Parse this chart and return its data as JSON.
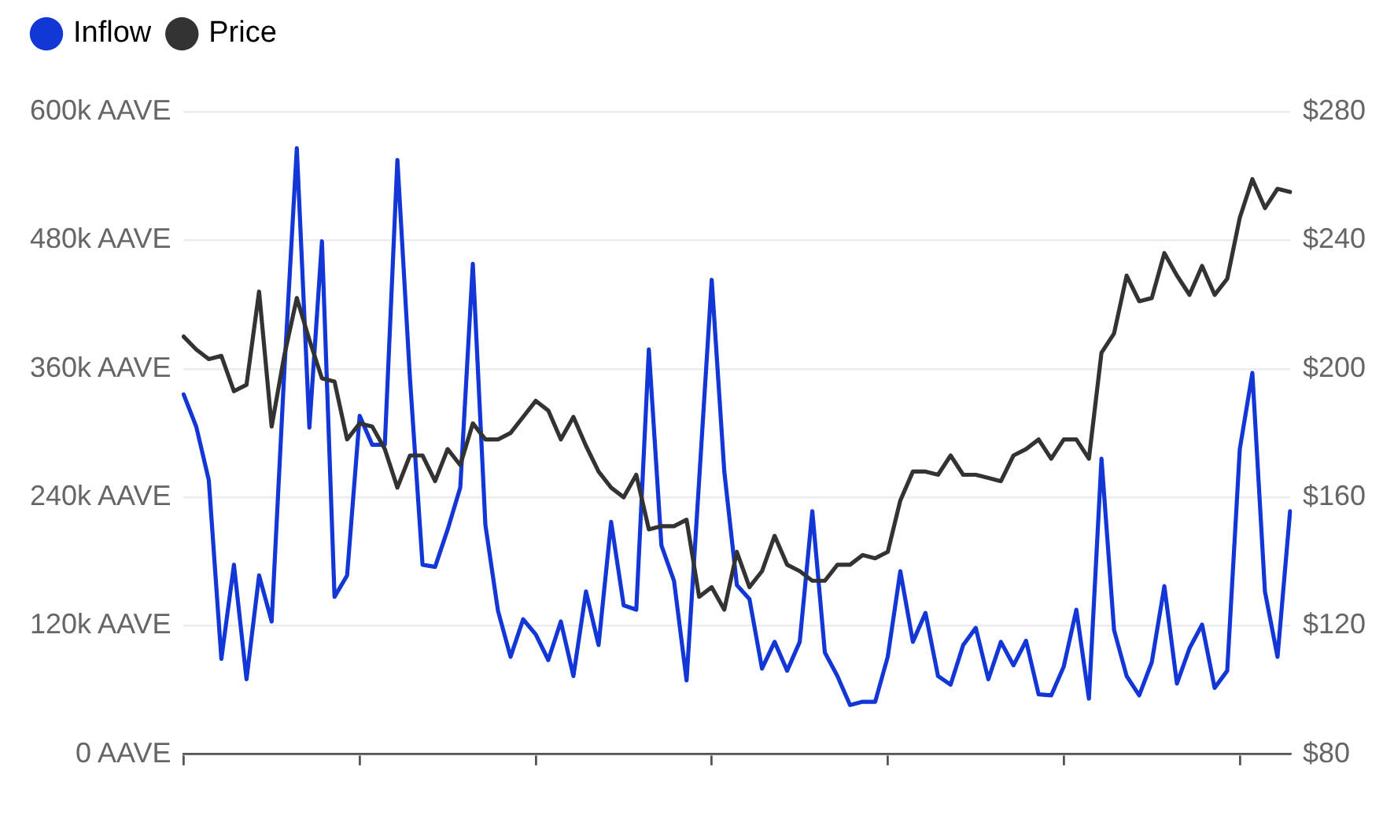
{
  "chart_data": {
    "type": "line",
    "categories": [
      null,
      null,
      null,
      null,
      null,
      null,
      null,
      null,
      null,
      null,
      null,
      null,
      null,
      null,
      null,
      null,
      null,
      null,
      null,
      null,
      null,
      null,
      null,
      null,
      null,
      null,
      null,
      null,
      null,
      null,
      null,
      null,
      null,
      null,
      null,
      null,
      null,
      null,
      null,
      null,
      null,
      null,
      null,
      null,
      null,
      null,
      null,
      null,
      null,
      null,
      null,
      null,
      null,
      null,
      null,
      null,
      null,
      null,
      null,
      null,
      null,
      null,
      null,
      null,
      null,
      null,
      null,
      null,
      null,
      null,
      null,
      null,
      null,
      null,
      null,
      null,
      null,
      null,
      null,
      null,
      null,
      null,
      null,
      null,
      null,
      null,
      null,
      null,
      null
    ],
    "series": [
      {
        "name": "Inflow",
        "color": "#1237d6",
        "values": [
          336000,
          306000,
          256000,
          89000,
          177000,
          70000,
          167000,
          124000,
          356000,
          566000,
          305000,
          479000,
          147000,
          167000,
          316000,
          289000,
          289000,
          555000,
          351000,
          177000,
          175000,
          210000,
          249000,
          458000,
          214000,
          134000,
          91000,
          126000,
          112000,
          88000,
          124000,
          73000,
          152000,
          102000,
          217000,
          139000,
          135000,
          378000,
          195000,
          162000,
          69000,
          256000,
          443000,
          264000,
          158000,
          145000,
          80000,
          105000,
          78000,
          105000,
          227000,
          95000,
          73000,
          46000,
          49000,
          49000,
          91000,
          171000,
          105000,
          132000,
          73000,
          65000,
          102000,
          118000,
          70000,
          105000,
          83000,
          106000,
          56000,
          55000,
          82000,
          135000,
          52000,
          276000,
          116000,
          73000,
          55000,
          86000,
          157000,
          66000,
          99000,
          121000,
          62000,
          78000,
          285000,
          356000,
          152000,
          91000,
          227000
        ]
      },
      {
        "name": "Price",
        "color": "#333333",
        "axis": "y2",
        "values": [
          210,
          206,
          203,
          204,
          193,
          195,
          224,
          182,
          204,
          222,
          209,
          197,
          196,
          178,
          183,
          182,
          175,
          163,
          173,
          173,
          165,
          175,
          170,
          183,
          178,
          178,
          180,
          185,
          190,
          187,
          178,
          185,
          176,
          168,
          163,
          160,
          167,
          150,
          151,
          151,
          153,
          129,
          132,
          125,
          143,
          132,
          137,
          148,
          139,
          137,
          134,
          134,
          139,
          139,
          142,
          141,
          143,
          159,
          168,
          168,
          167,
          173,
          167,
          167,
          166,
          165,
          173,
          175,
          178,
          172,
          178,
          178,
          172,
          205,
          211,
          229,
          221,
          222,
          236,
          229,
          223,
          232,
          223,
          228,
          247,
          259,
          250,
          256,
          255
        ]
      }
    ],
    "ylim": [
      0,
      600000
    ],
    "yticks": [
      {
        "value": 0,
        "label": "0 AAVE"
      },
      {
        "value": 120000,
        "label": "120k AAVE"
      },
      {
        "value": 240000,
        "label": "240k AAVE"
      },
      {
        "value": 360000,
        "label": "360k AAVE"
      },
      {
        "value": 480000,
        "label": "480k AAVE"
      },
      {
        "value": 600000,
        "label": "600k AAVE"
      }
    ],
    "y2lim": [
      80,
      280
    ],
    "y2ticks": [
      {
        "value": 80,
        "label": "$80"
      },
      {
        "value": 120,
        "label": "$120"
      },
      {
        "value": 160,
        "label": "$160"
      },
      {
        "value": 200,
        "label": "$200"
      },
      {
        "value": 240,
        "label": "$240"
      },
      {
        "value": 280,
        "label": "$280"
      }
    ],
    "grid": "y",
    "legend": "top left",
    "marker": "none",
    "line_style": "solid"
  }
}
